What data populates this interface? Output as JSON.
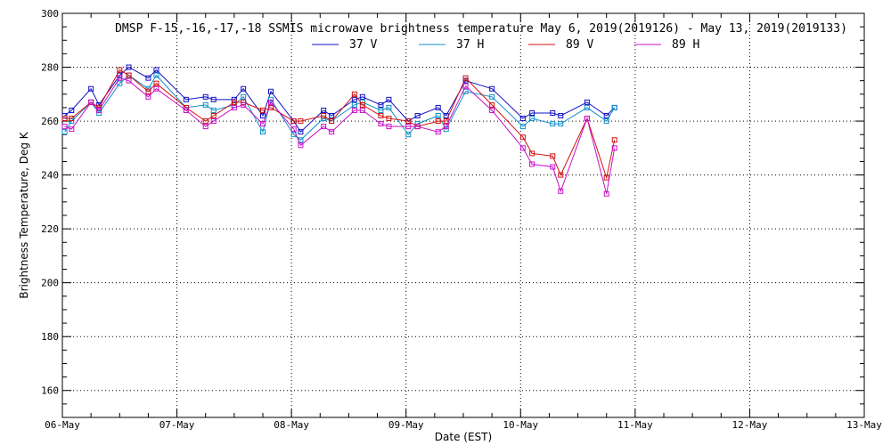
{
  "chart_data": {
    "type": "line",
    "title": "DMSP F-15,-16,-17,-18 SSMIS microwave brightness temperature May  6, 2019(2019126) - May 13, 2019(2019133)",
    "xlabel": "Date (EST)",
    "ylabel": "Brightness Temperature, Deg K",
    "xlim": [
      0,
      7
    ],
    "ylim": [
      150,
      300
    ],
    "grid": true,
    "legend_position": "top-center",
    "x_ticks": [
      {
        "value": 0,
        "label": "06-May"
      },
      {
        "value": 1,
        "label": "07-May"
      },
      {
        "value": 2,
        "label": "08-May"
      },
      {
        "value": 3,
        "label": "09-May"
      },
      {
        "value": 4,
        "label": "10-May"
      },
      {
        "value": 5,
        "label": "11-May"
      },
      {
        "value": 6,
        "label": "12-May"
      },
      {
        "value": 7,
        "label": "13-May"
      }
    ],
    "y_ticks": [
      160,
      180,
      200,
      220,
      240,
      260,
      280,
      300
    ],
    "series": [
      {
        "name": "37 V",
        "color": "#1010c8",
        "x": [
          0.02,
          0.08,
          0.25,
          0.32,
          0.5,
          0.58,
          0.75,
          0.82,
          1.08,
          1.25,
          1.32,
          1.5,
          1.58,
          1.75,
          1.82,
          2.02,
          2.08,
          2.28,
          2.35,
          2.55,
          2.62,
          2.78,
          2.85,
          3.02,
          3.1,
          3.28,
          3.35,
          3.52,
          3.75,
          4.02,
          4.1,
          4.28,
          4.35,
          4.58,
          4.75,
          4.82
        ],
        "values": [
          262,
          264,
          272,
          266,
          277,
          280,
          276,
          279,
          268,
          269,
          268,
          268,
          272,
          262,
          271,
          260,
          256,
          264,
          262,
          268,
          269,
          266,
          268,
          260,
          262,
          265,
          262,
          275,
          272,
          261,
          263,
          263,
          262,
          267,
          262,
          265
        ]
      },
      {
        "name": "37 H",
        "color": "#1090c8",
        "x": [
          0.02,
          0.08,
          0.25,
          0.32,
          0.5,
          0.58,
          0.75,
          0.82,
          1.08,
          1.25,
          1.32,
          1.5,
          1.58,
          1.75,
          1.82,
          2.02,
          2.08,
          2.28,
          2.35,
          2.55,
          2.62,
          2.78,
          2.85,
          3.02,
          3.1,
          3.28,
          3.35,
          3.52,
          3.75,
          4.02,
          4.1,
          4.28,
          4.35,
          4.58,
          4.75,
          4.82
        ],
        "values": [
          256,
          260,
          267,
          263,
          274,
          277,
          272,
          277,
          265,
          266,
          264,
          266,
          269,
          256,
          268,
          255,
          253,
          261,
          260,
          266,
          267,
          264,
          265,
          255,
          259,
          262,
          257,
          271,
          269,
          258,
          261,
          259,
          259,
          265,
          260,
          265
        ]
      },
      {
        "name": "89 V",
        "color": "#d01010",
        "x": [
          0.02,
          0.08,
          0.25,
          0.32,
          0.5,
          0.58,
          0.75,
          0.82,
          1.08,
          1.25,
          1.32,
          1.5,
          1.58,
          1.75,
          1.82,
          2.02,
          2.08,
          2.28,
          2.35,
          2.55,
          2.62,
          2.78,
          2.85,
          3.02,
          3.1,
          3.28,
          3.35,
          3.52,
          3.75,
          4.02,
          4.1,
          4.28,
          4.35,
          4.58,
          4.75,
          4.82
        ],
        "values": [
          261,
          261,
          267,
          265,
          279,
          277,
          271,
          274,
          265,
          260,
          262,
          267,
          267,
          264,
          265,
          260,
          260,
          262,
          260,
          270,
          266,
          262,
          261,
          260,
          258,
          260,
          260,
          276,
          266,
          254,
          248,
          247,
          240,
          261,
          239,
          253
        ]
      },
      {
        "name": "89 H",
        "color": "#c810c8",
        "x": [
          0.02,
          0.08,
          0.25,
          0.32,
          0.5,
          0.58,
          0.75,
          0.82,
          1.08,
          1.25,
          1.32,
          1.5,
          1.58,
          1.75,
          1.82,
          2.02,
          2.08,
          2.28,
          2.35,
          2.55,
          2.62,
          2.78,
          2.85,
          3.02,
          3.1,
          3.28,
          3.35,
          3.52,
          3.75,
          4.02,
          4.1,
          4.28,
          4.35,
          4.58,
          4.75,
          4.82
        ],
        "values": [
          258,
          257,
          267,
          264,
          276,
          275,
          269,
          272,
          264,
          258,
          260,
          265,
          266,
          259,
          267,
          257,
          251,
          258,
          256,
          264,
          264,
          259,
          258,
          258,
          258,
          256,
          258,
          273,
          264,
          250,
          244,
          243,
          234,
          261,
          233,
          250
        ]
      }
    ]
  }
}
